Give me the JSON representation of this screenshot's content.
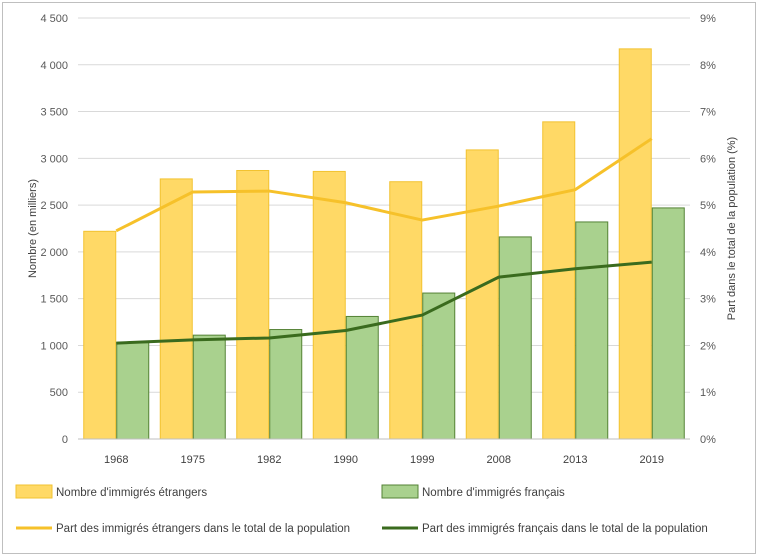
{
  "chart_data": {
    "type": "bar",
    "categories": [
      "1968",
      "1975",
      "1982",
      "1990",
      "1999",
      "2008",
      "2013",
      "2019"
    ],
    "ylabel": "Nombre (en milliers)",
    "y2label": "Part dans le total de la population (%)",
    "ylim": [
      0,
      4500
    ],
    "y2lim": [
      0,
      9
    ],
    "y_ticks": [
      {
        "v": 0,
        "label": "0"
      },
      {
        "v": 500,
        "label": "500"
      },
      {
        "v": 1000,
        "label": "1 000"
      },
      {
        "v": 1500,
        "label": "1 500"
      },
      {
        "v": 2000,
        "label": "2 000"
      },
      {
        "v": 2500,
        "label": "2 500"
      },
      {
        "v": 3000,
        "label": "3 000"
      },
      {
        "v": 3500,
        "label": "3 500"
      },
      {
        "v": 4000,
        "label": "4 000"
      },
      {
        "v": 4500,
        "label": "4 500"
      }
    ],
    "y2_ticks": [
      {
        "v": 0,
        "label": "0%"
      },
      {
        "v": 1,
        "label": "1%"
      },
      {
        "v": 2,
        "label": "2%"
      },
      {
        "v": 3,
        "label": "3%"
      },
      {
        "v": 4,
        "label": "4%"
      },
      {
        "v": 5,
        "label": "5%"
      },
      {
        "v": 6,
        "label": "6%"
      },
      {
        "v": 7,
        "label": "7%"
      },
      {
        "v": 8,
        "label": "8%"
      },
      {
        "v": 9,
        "label": "9%"
      }
    ],
    "grid": true,
    "legend_position": "bottom",
    "series": [
      {
        "name": "Nombre d'immigrés étrangers",
        "kind": "bar",
        "axis": "left",
        "color": "#ffd966",
        "stroke": "#f2c230",
        "values": [
          2220,
          2780,
          2870,
          2860,
          2750,
          3090,
          3390,
          4170
        ]
      },
      {
        "name": "Nombre d'immigrés français",
        "kind": "bar",
        "axis": "left",
        "color": "#a9d18e",
        "stroke": "#548235",
        "values": [
          1030,
          1110,
          1170,
          1310,
          1560,
          2160,
          2320,
          2470
        ]
      },
      {
        "name": "Part des immigrés étrangers dans le total de la population",
        "kind": "line",
        "axis": "right",
        "color": "#f6c12a",
        "values": [
          4.45,
          5.28,
          5.3,
          5.05,
          4.68,
          4.98,
          5.33,
          6.42
        ]
      },
      {
        "name": "Part des immigrés français dans le total de la population",
        "kind": "line",
        "axis": "right",
        "color": "#3a6b1e",
        "values": [
          2.05,
          2.12,
          2.16,
          2.32,
          2.65,
          3.46,
          3.64,
          3.78
        ]
      }
    ]
  }
}
